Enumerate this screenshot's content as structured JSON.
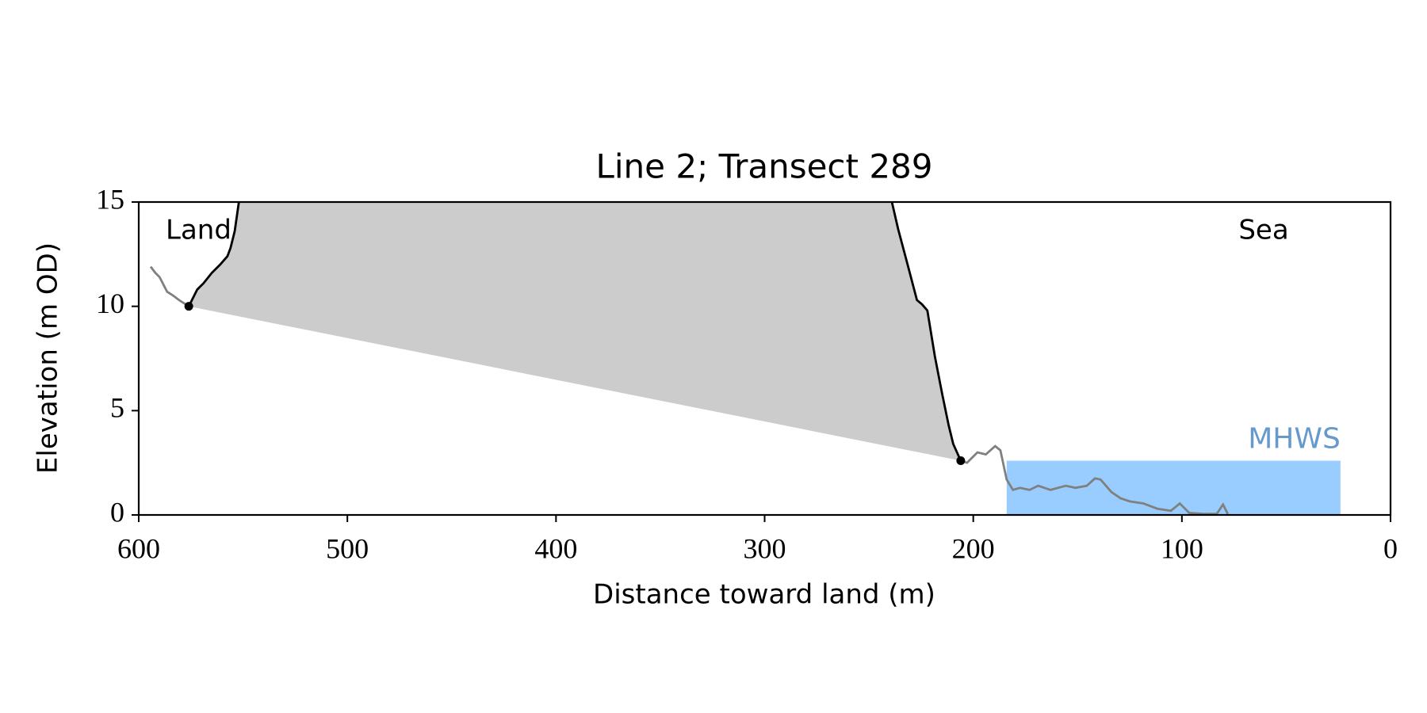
{
  "chart_data": {
    "type": "line",
    "title": "Line 2; Transect 289",
    "xlabel": "Distance toward land (m)",
    "ylabel": "Elevation (m OD)",
    "xlim": [
      600,
      0
    ],
    "ylim": [
      0,
      15
    ],
    "xticks": [
      600,
      500,
      400,
      300,
      200,
      100,
      0
    ],
    "yticks": [
      0,
      5,
      10,
      15
    ],
    "series": [
      {
        "color": "#808080",
        "x": [
          594.3,
          592,
          590,
          586.4,
          583.3,
          580.7,
          576
        ],
        "values": [
          11.9,
          11.6,
          11.4,
          10.7,
          10.5,
          10.3,
          10
        ]
      },
      {
        "color": "#000000",
        "x": [
          576,
          572,
          569,
          565,
          561,
          557.5,
          556,
          554,
          552
        ],
        "values": [
          10,
          10.8,
          11.1,
          11.6,
          12.0,
          12.4,
          12.8,
          13.6,
          15
        ]
      },
      {
        "color": "#000000",
        "x": [
          239,
          236,
          232,
          227,
          224.6,
          222,
          218.4,
          214.9,
          211.8,
          209.6,
          206
        ],
        "values": [
          15,
          13.7,
          12.2,
          10.3,
          10.1,
          9.8,
          7.6,
          5.8,
          4.3,
          3.4,
          2.6
        ]
      },
      {
        "color": "#808080",
        "x": [
          206,
          203,
          198,
          194,
          189.5,
          187,
          184,
          181,
          177.6,
          173,
          168.9,
          163,
          155.7,
          151,
          145.6,
          141.7,
          139,
          133.8,
          129.4,
          125,
          118.4,
          111.8,
          105.3,
          101,
          96.5,
          90,
          83.3,
          80.3,
          78
        ],
        "values": [
          2.6,
          2.5,
          3.0,
          2.9,
          3.3,
          3.1,
          1.7,
          1.2,
          1.3,
          1.2,
          1.4,
          1.2,
          1.4,
          1.3,
          1.4,
          1.75,
          1.7,
          1.1,
          0.8,
          0.65,
          0.55,
          0.3,
          0.2,
          0.55,
          0.1,
          0.05,
          0.05,
          0.5,
          0.05
        ]
      }
    ],
    "fill_color": "#cccccc",
    "points": {
      "color": "#000000",
      "x": [
        576,
        206
      ],
      "values": [
        10,
        2.6
      ]
    },
    "mhws": {
      "label": "MHWS",
      "value": 2.6,
      "x": [
        184,
        24
      ],
      "color": "#99ccff",
      "label_color": "#6699cc"
    },
    "annotations": [
      "Land",
      "Sea"
    ]
  }
}
